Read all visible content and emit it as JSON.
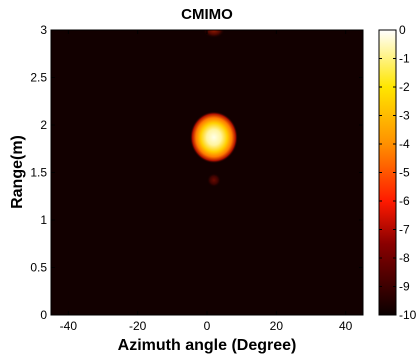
{
  "chart_data": {
    "type": "heatmap",
    "title": "CMIMO",
    "xlabel": "Azimuth angle (Degree)",
    "ylabel": "Range(m)",
    "xlim": [
      -45,
      45
    ],
    "ylim": [
      0,
      3
    ],
    "xticks": [
      -40,
      -20,
      0,
      20,
      40
    ],
    "yticks": [
      0,
      0.5,
      1,
      1.5,
      2,
      2.5,
      3
    ],
    "xtick_labels": [
      "-40",
      "-20",
      "0",
      "20",
      "40"
    ],
    "ytick_labels": [
      "0",
      "0.5",
      "1",
      "1.5",
      "2",
      "2.5",
      "3"
    ],
    "colorbar": {
      "colormap": "hot",
      "range": [
        -10,
        0
      ],
      "ticks": [
        0,
        -1,
        -2,
        -3,
        -4,
        -5,
        -6,
        -7,
        -8,
        -9,
        -10
      ],
      "tick_labels": [
        "0",
        "-1",
        "-2",
        "-3",
        "-4",
        "-5",
        "-6",
        "-7",
        "-8",
        "-9",
        "-10"
      ]
    },
    "background_level_db": -10,
    "peaks": [
      {
        "azimuth": 2,
        "range": 1.87,
        "level_db": 0
      },
      {
        "azimuth": 2,
        "range": 1.42,
        "level_db": -8
      },
      {
        "azimuth": 2,
        "range": 3.0,
        "level_db": -7.5
      }
    ]
  }
}
